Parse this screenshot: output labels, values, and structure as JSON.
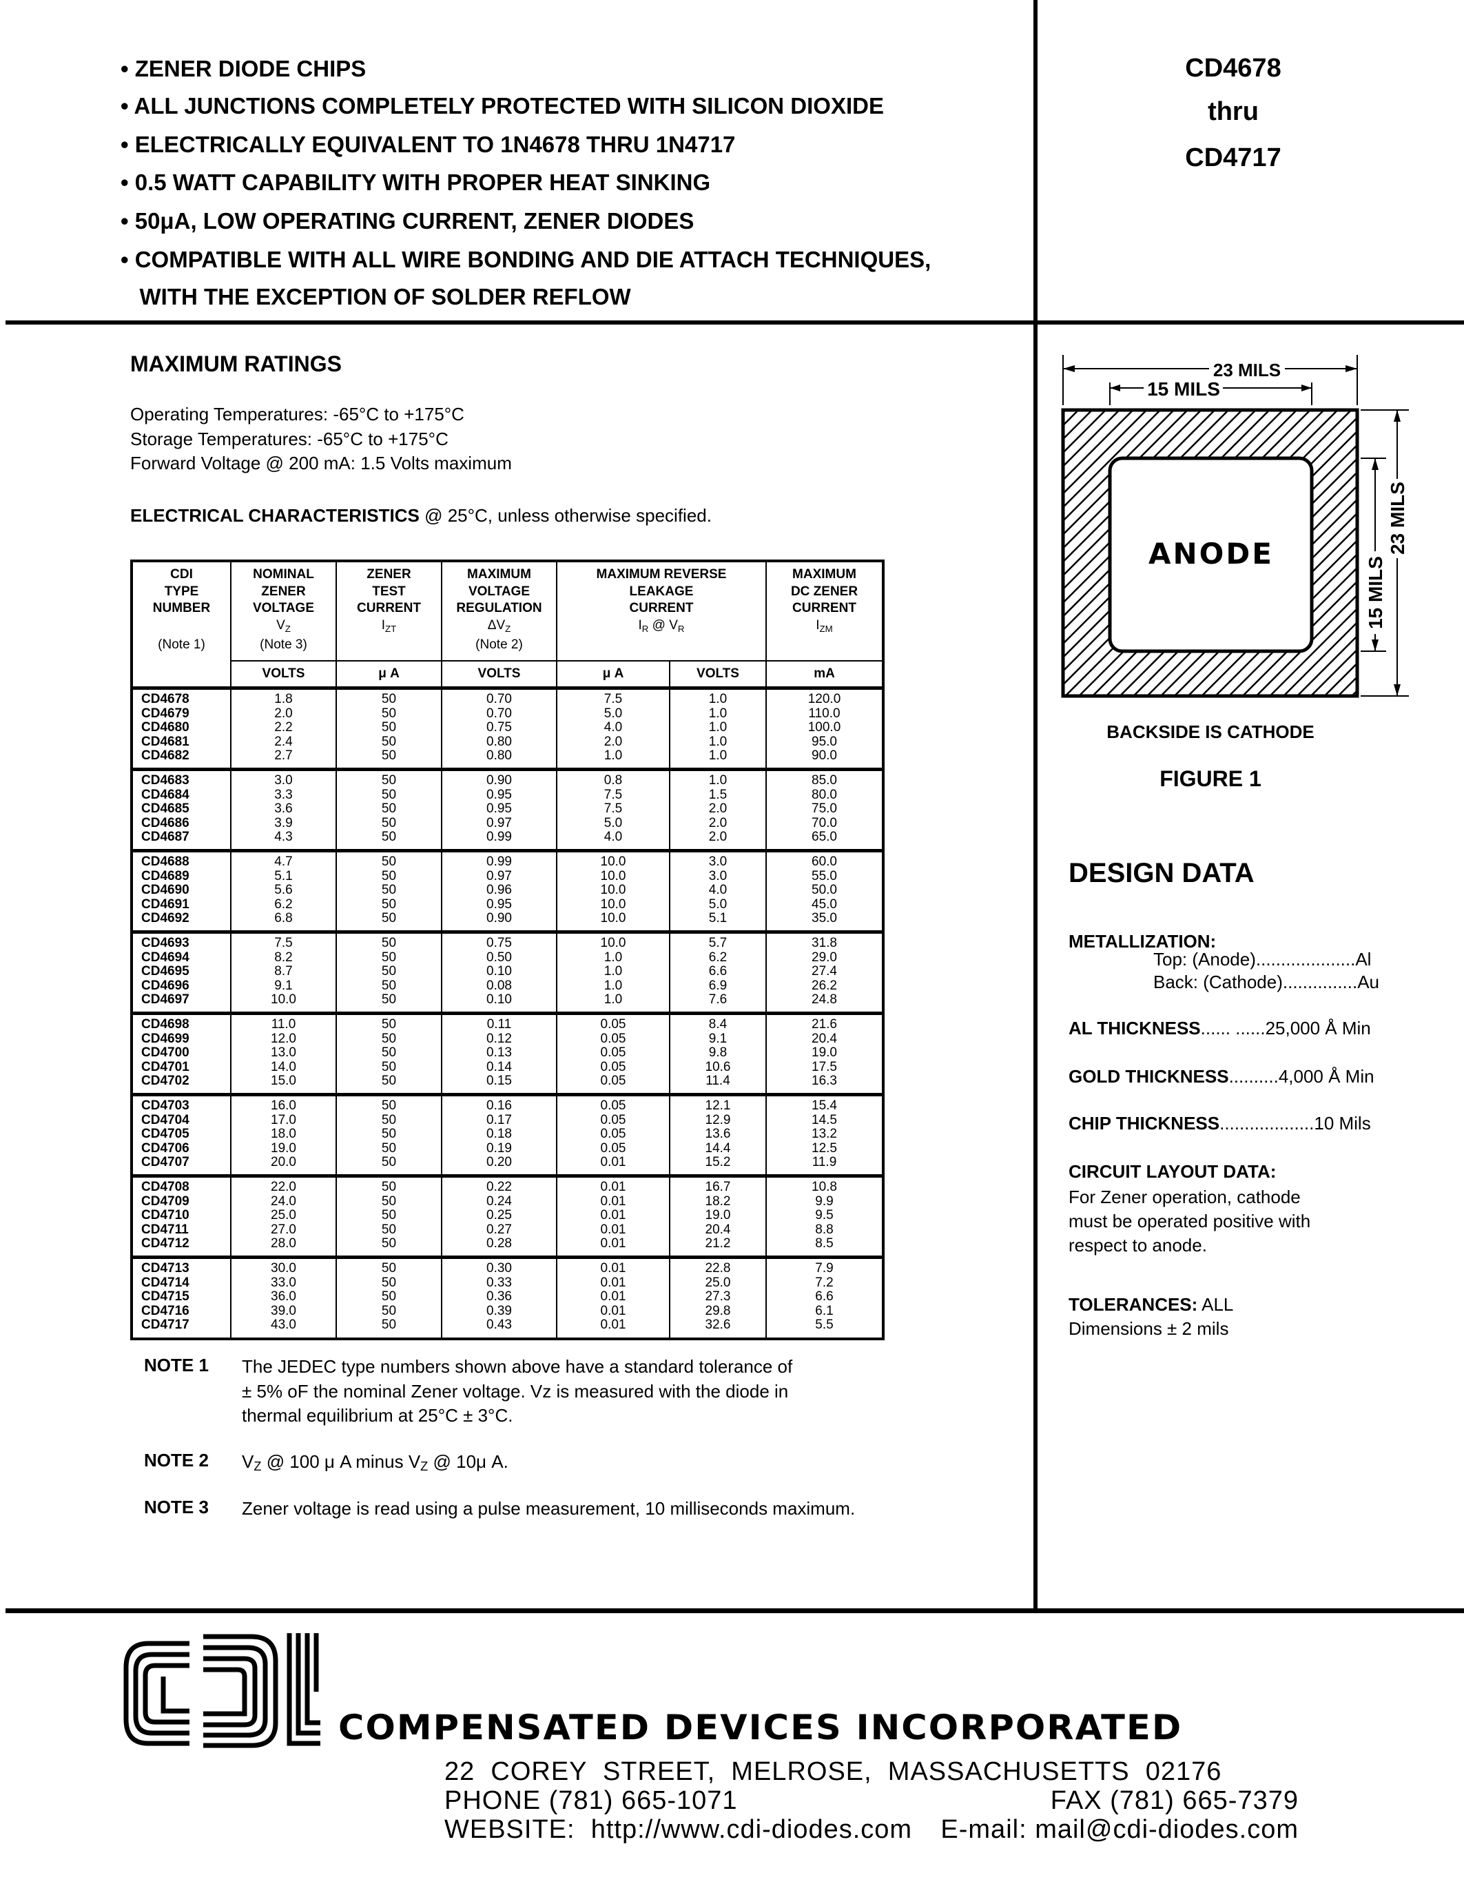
{
  "features": [
    "• ZENER DIODE CHIPS",
    "• ALL JUNCTIONS COMPLETELY PROTECTED WITH SILICON DIOXIDE",
    "• ELECTRICALLY EQUIVALENT TO 1N4678 THRU 1N4717",
    "• 0.5 WATT CAPABILITY WITH PROPER HEAT SINKING",
    "• 50μA, LOW OPERATING CURRENT, ZENER DIODES",
    "• COMPATIBLE WITH ALL WIRE BONDING AND DIE ATTACH TECHNIQUES,",
    "   WITH THE EXCEPTION OF SOLDER REFLOW"
  ],
  "part_range": {
    "first": "CD4678",
    "thru": "thru",
    "last": "CD4717"
  },
  "max_ratings": {
    "title": "MAXIMUM RATINGS",
    "lines": [
      "Operating Temperatures: -65°C to +175°C",
      "Storage Temperatures: -65°C to +175°C",
      "Forward Voltage @ 200 mA: 1.5 Volts maximum"
    ]
  },
  "elec_char": {
    "title": "ELECTRICAL CHARACTERISTICS",
    "condition": " @ 25°C, unless otherwise specified."
  },
  "table": {
    "headers": [
      {
        "lines": [
          "CDI",
          "TYPE",
          "NUMBER"
        ],
        "symbol": "",
        "sub": "",
        "note": "(Note 1)"
      },
      {
        "lines": [
          "NOMINAL",
          "ZENER",
          "VOLTAGE"
        ],
        "symbol": "V",
        "sub": "Z",
        "note": "(Note 3)"
      },
      {
        "lines": [
          "ZENER",
          "TEST",
          "CURRENT"
        ],
        "symbol": "I",
        "sub": "ZT",
        "note": ""
      },
      {
        "lines": [
          "MAXIMUM",
          "VOLTAGE",
          "REGULATION"
        ],
        "symbol": "ΔV",
        "sub": "Z",
        "note": "(Note 2)"
      },
      {
        "lines": [
          "MAXIMUM REVERSE",
          "LEAKAGE",
          "CURRENT"
        ],
        "symbol": "I",
        "sub": "R",
        "symbol2": " @ V",
        "sub2": "R",
        "note": ""
      },
      {
        "lines": [
          "MAXIMUM",
          "DC ZENER",
          "CURRENT"
        ],
        "symbol": "I",
        "sub": "ZM",
        "note": ""
      }
    ],
    "units": [
      "VOLTS",
      "μ A",
      "VOLTS",
      "μ A",
      "VOLTS",
      "mA"
    ],
    "rows": [
      [
        "CD4678",
        "1.8",
        "50",
        "0.70",
        "7.5",
        "1.0",
        "120.0"
      ],
      [
        "CD4679",
        "2.0",
        "50",
        "0.70",
        "5.0",
        "1.0",
        "110.0"
      ],
      [
        "CD4680",
        "2.2",
        "50",
        "0.75",
        "4.0",
        "1.0",
        "100.0"
      ],
      [
        "CD4681",
        "2.4",
        "50",
        "0.80",
        "2.0",
        "1.0",
        "95.0"
      ],
      [
        "CD4682",
        "2.7",
        "50",
        "0.80",
        "1.0",
        "1.0",
        "90.0"
      ],
      [
        "CD4683",
        "3.0",
        "50",
        "0.90",
        "0.8",
        "1.0",
        "85.0"
      ],
      [
        "CD4684",
        "3.3",
        "50",
        "0.95",
        "7.5",
        "1.5",
        "80.0"
      ],
      [
        "CD4685",
        "3.6",
        "50",
        "0.95",
        "7.5",
        "2.0",
        "75.0"
      ],
      [
        "CD4686",
        "3.9",
        "50",
        "0.97",
        "5.0",
        "2.0",
        "70.0"
      ],
      [
        "CD4687",
        "4.3",
        "50",
        "0.99",
        "4.0",
        "2.0",
        "65.0"
      ],
      [
        "CD4688",
        "4.7",
        "50",
        "0.99",
        "10.0",
        "3.0",
        "60.0"
      ],
      [
        "CD4689",
        "5.1",
        "50",
        "0.97",
        "10.0",
        "3.0",
        "55.0"
      ],
      [
        "CD4690",
        "5.6",
        "50",
        "0.96",
        "10.0",
        "4.0",
        "50.0"
      ],
      [
        "CD4691",
        "6.2",
        "50",
        "0.95",
        "10.0",
        "5.0",
        "45.0"
      ],
      [
        "CD4692",
        "6.8",
        "50",
        "0.90",
        "10.0",
        "5.1",
        "35.0"
      ],
      [
        "CD4693",
        "7.5",
        "50",
        "0.75",
        "10.0",
        "5.7",
        "31.8"
      ],
      [
        "CD4694",
        "8.2",
        "50",
        "0.50",
        "1.0",
        "6.2",
        "29.0"
      ],
      [
        "CD4695",
        "8.7",
        "50",
        "0.10",
        "1.0",
        "6.6",
        "27.4"
      ],
      [
        "CD4696",
        "9.1",
        "50",
        "0.08",
        "1.0",
        "6.9",
        "26.2"
      ],
      [
        "CD4697",
        "10.0",
        "50",
        "0.10",
        "1.0",
        "7.6",
        "24.8"
      ],
      [
        "CD4698",
        "11.0",
        "50",
        "0.11",
        "0.05",
        "8.4",
        "21.6"
      ],
      [
        "CD4699",
        "12.0",
        "50",
        "0.12",
        "0.05",
        "9.1",
        "20.4"
      ],
      [
        "CD4700",
        "13.0",
        "50",
        "0.13",
        "0.05",
        "9.8",
        "19.0"
      ],
      [
        "CD4701",
        "14.0",
        "50",
        "0.14",
        "0.05",
        "10.6",
        "17.5"
      ],
      [
        "CD4702",
        "15.0",
        "50",
        "0.15",
        "0.05",
        "11.4",
        "16.3"
      ],
      [
        "CD4703",
        "16.0",
        "50",
        "0.16",
        "0.05",
        "12.1",
        "15.4"
      ],
      [
        "CD4704",
        "17.0",
        "50",
        "0.17",
        "0.05",
        "12.9",
        "14.5"
      ],
      [
        "CD4705",
        "18.0",
        "50",
        "0.18",
        "0.05",
        "13.6",
        "13.2"
      ],
      [
        "CD4706",
        "19.0",
        "50",
        "0.19",
        "0.05",
        "14.4",
        "12.5"
      ],
      [
        "CD4707",
        "20.0",
        "50",
        "0.20",
        "0.01",
        "15.2",
        "11.9"
      ],
      [
        "CD4708",
        "22.0",
        "50",
        "0.22",
        "0.01",
        "16.7",
        "10.8"
      ],
      [
        "CD4709",
        "24.0",
        "50",
        "0.24",
        "0.01",
        "18.2",
        "9.9"
      ],
      [
        "CD4710",
        "25.0",
        "50",
        "0.25",
        "0.01",
        "19.0",
        "9.5"
      ],
      [
        "CD4711",
        "27.0",
        "50",
        "0.27",
        "0.01",
        "20.4",
        "8.8"
      ],
      [
        "CD4712",
        "28.0",
        "50",
        "0.28",
        "0.01",
        "21.2",
        "8.5"
      ],
      [
        "CD4713",
        "30.0",
        "50",
        "0.30",
        "0.01",
        "22.8",
        "7.9"
      ],
      [
        "CD4714",
        "33.0",
        "50",
        "0.33",
        "0.01",
        "25.0",
        "7.2"
      ],
      [
        "CD4715",
        "36.0",
        "50",
        "0.36",
        "0.01",
        "27.3",
        "6.6"
      ],
      [
        "CD4716",
        "39.0",
        "50",
        "0.39",
        "0.01",
        "29.8",
        "6.1"
      ],
      [
        "CD4717",
        "43.0",
        "50",
        "0.43",
        "0.01",
        "32.6",
        "5.5"
      ]
    ]
  },
  "notes": [
    {
      "label": "NOTE 1",
      "lines": [
        "The JEDEC type numbers shown above have a standard tolerance of",
        "± 5% oF the nominal Zener voltage. Vz is measured with the diode in",
        "thermal equilibrium at 25°C ± 3°C."
      ]
    },
    {
      "label": "NOTE 2",
      "parts": [
        "V",
        "Z",
        " @ 100 μ A minus V",
        "Z",
        " @ 10μ A."
      ]
    },
    {
      "label": "NOTE 3",
      "lines": [
        "Zener voltage is read using a pulse measurement, 10 milliseconds maximum."
      ]
    }
  ],
  "figure": {
    "outer_dim": "23 MILS",
    "inner_dim": "15 MILS",
    "pad_label": "ANODE",
    "backside": "BACKSIDE IS CATHODE",
    "caption": "FIGURE 1"
  },
  "design_data": {
    "title": "DESIGN DATA",
    "metallization_label": "METALLIZATION:",
    "top": "Top: (Anode)....................Al",
    "back": "Back: (Cathode)...............Au",
    "al_label": "AL THICKNESS",
    "al_value": "...... ......25,000 Å Min",
    "gold_label": "GOLD THICKNESS",
    "gold_value": "..........4,000 Å Min",
    "chip_label": "CHIP THICKNESS",
    "chip_value": "...................10 Mils",
    "circuit_label": "CIRCUIT LAYOUT DATA:",
    "circuit_lines": [
      "For Zener operation, cathode",
      "must be operated positive with",
      "respect to anode."
    ],
    "tol_label": "TOLERANCES:",
    "tol_value": " ALL",
    "tol_line": "Dimensions ± 2 mils"
  },
  "footer": {
    "logo_text": "cdi",
    "company": "COMPENSATED DEVICES INCORPORATED",
    "address": "22  COREY  STREET,  MELROSE,  MASSACHUSETTS  02176",
    "phone": "PHONE (781) 665-1071",
    "fax": "FAX (781) 665-7379",
    "website": "WEBSITE:  http://www.cdi-diodes.com",
    "email": "E-mail: mail@cdi-diodes.com"
  }
}
